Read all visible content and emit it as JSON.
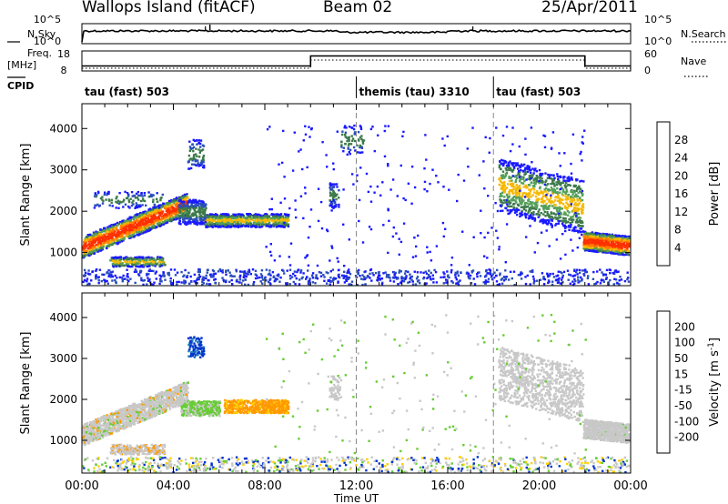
{
  "header": {
    "station": "Wallops Island (fitACF)",
    "beam": "Beam 02",
    "date": "25/Apr/2011"
  },
  "chart_data": [
    {
      "type": "line",
      "name": "noise-panel",
      "left_label": "N.Sky",
      "right_label": "N.Search",
      "left_ticks": [
        "10^5",
        "10^0"
      ],
      "right_ticks": [
        "10^5",
        "10^0"
      ],
      "scale": "log"
    },
    {
      "type": "line",
      "name": "frequency-panel",
      "left_label": "Freq.",
      "left_unit": "[MHz]",
      "left_ticks": [
        18,
        8
      ],
      "right_label": "Nave",
      "right_ticks": [
        60,
        0
      ],
      "x": [
        0,
        10,
        10,
        22,
        22,
        24
      ],
      "freq": [
        10.5,
        10.5,
        15.5,
        15.5,
        10.5,
        10.5
      ]
    },
    {
      "type": "table",
      "name": "cpid-bar",
      "label": "CPID",
      "segments": [
        {
          "label": "tau (fast) 503",
          "start": 0,
          "end": 12
        },
        {
          "label": "themis (tau) 3310",
          "start": 12,
          "end": 18
        },
        {
          "label": "tau (fast) 503",
          "start": 18,
          "end": 24
        }
      ]
    },
    {
      "type": "heatmap",
      "name": "power",
      "ylabel": "Slant Range [km]",
      "ylim": [
        200,
        4600
      ],
      "yticks": [
        1000,
        2000,
        3000,
        4000
      ],
      "colorbar": {
        "label": "Power [dB]",
        "ticks": [
          4,
          8,
          12,
          16,
          20,
          24,
          28
        ],
        "colors": [
          "#1a1aff",
          "#2a4fb8",
          "#3d7a4a",
          "#55a05a",
          "#f5b800",
          "#ff7a00",
          "#ff3000",
          "#e00000"
        ]
      },
      "features": [
        {
          "x": [
            0,
            0.5,
            1,
            1.5,
            2,
            2.5,
            3,
            3.5,
            4,
            4.5
          ],
          "y": [
            1200,
            1300,
            1450,
            1600,
            1700,
            1800,
            1900,
            2000,
            2100,
            2200
          ]
        },
        {
          "x": [
            5.5,
            6.5,
            7.5,
            8.5
          ],
          "y": [
            1800,
            1750,
            1800,
            1850
          ]
        },
        {
          "x": [
            21.5,
            22.5,
            23.5,
            24
          ],
          "y": [
            1350,
            1250,
            1200,
            1100
          ]
        }
      ]
    },
    {
      "type": "heatmap",
      "name": "velocity",
      "ylabel": "Slant Range [km]",
      "xlabel": "Time UT",
      "ylim": [
        200,
        4600
      ],
      "yticks": [
        1000,
        2000,
        3000,
        4000
      ],
      "xticks": [
        "00:00",
        "04:00",
        "08:00",
        "12:00",
        "16:00",
        "20:00",
        "00:00"
      ],
      "xlim": [
        0,
        24
      ],
      "colorbar": {
        "label": "Velocity [m s",
        "label_superscript": "-1",
        "label_tail": "]",
        "ticks": [
          200,
          100,
          50,
          15,
          -15,
          -50,
          -100,
          -200
        ],
        "colors": [
          "#0033cc",
          "#1f7ac2",
          "#2e8b57",
          "#66cc33",
          "#c8c8c8",
          "#ffd000",
          "#ff9900",
          "#ff5500",
          "#e00000"
        ]
      }
    }
  ]
}
